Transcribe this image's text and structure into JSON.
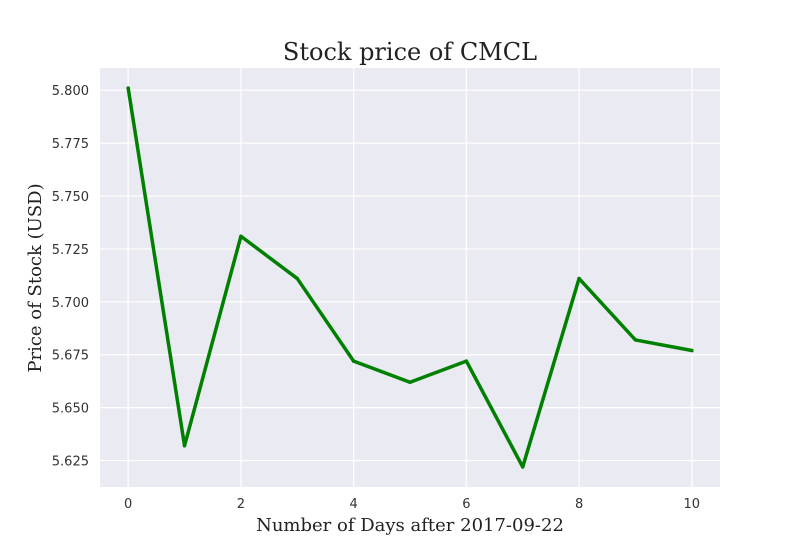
{
  "chart_data": {
    "type": "line",
    "title": "Stock price of CMCL",
    "xlabel": "Number of Days after 2017-09-22",
    "ylabel": "Price of Stock (USD)",
    "x": [
      0,
      1,
      2,
      3,
      4,
      5,
      6,
      7,
      8,
      9,
      10
    ],
    "series": [
      {
        "values": [
          5.801,
          5.632,
          5.731,
          5.711,
          5.672,
          5.662,
          5.672,
          5.622,
          5.711,
          5.682,
          5.677
        ]
      }
    ],
    "xlim": [
      -0.5,
      10.5
    ],
    "ylim": [
      5.6125,
      5.8105
    ],
    "xticks": [
      0,
      2,
      4,
      6,
      8,
      10
    ],
    "xtick_labels": [
      "0",
      "2",
      "4",
      "6",
      "8",
      "10"
    ],
    "yticks": [
      5.625,
      5.65,
      5.675,
      5.7,
      5.725,
      5.75,
      5.775,
      5.8
    ],
    "ytick_labels": [
      "5.625",
      "5.650",
      "5.675",
      "5.700",
      "5.725",
      "5.750",
      "5.775",
      "5.800"
    ],
    "grid": true,
    "line_color": "#008000",
    "plot_background": "#eaeaf2",
    "grid_color": "#ffffff"
  }
}
